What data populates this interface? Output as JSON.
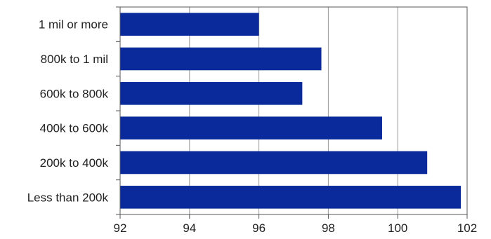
{
  "chart_data": {
    "type": "bar",
    "orientation": "horizontal",
    "categories": [
      "1 mil or more",
      "800k to 1 mil",
      "600k to 800k",
      "400k to 600k",
      "200k to 400k",
      "Less than 200k"
    ],
    "values": [
      96.0,
      97.8,
      97.25,
      99.55,
      100.85,
      101.82
    ],
    "title": "",
    "xlabel": "",
    "ylabel": "",
    "xlim": [
      92,
      102
    ],
    "xticks": [
      92,
      94,
      96,
      98,
      100,
      102
    ],
    "grid": "vertical",
    "legend": "none",
    "colors": {
      "bar": "#0A2A9B",
      "grid": "#999999",
      "axis": "#555555"
    }
  }
}
